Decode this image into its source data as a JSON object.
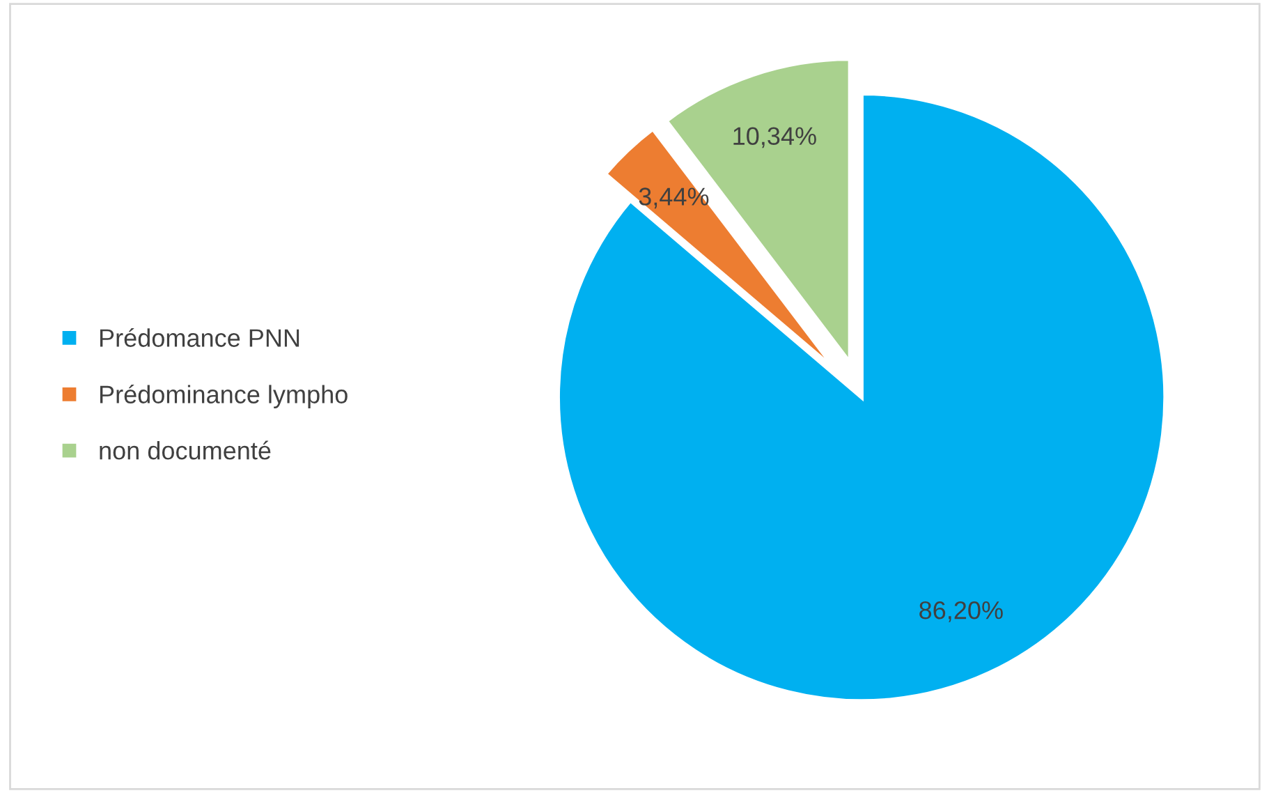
{
  "chart_data": {
    "type": "pie",
    "categories": [
      "Prédomance PNN",
      "Prédominance lympho",
      "non documenté"
    ],
    "values": [
      86.2,
      3.44,
      10.34
    ],
    "colors": [
      "#00b0f0",
      "#ed7d31",
      "#a9d18e"
    ],
    "value_labels": [
      "86,20%",
      "3,44%",
      "10,34%"
    ],
    "legend": "left"
  }
}
